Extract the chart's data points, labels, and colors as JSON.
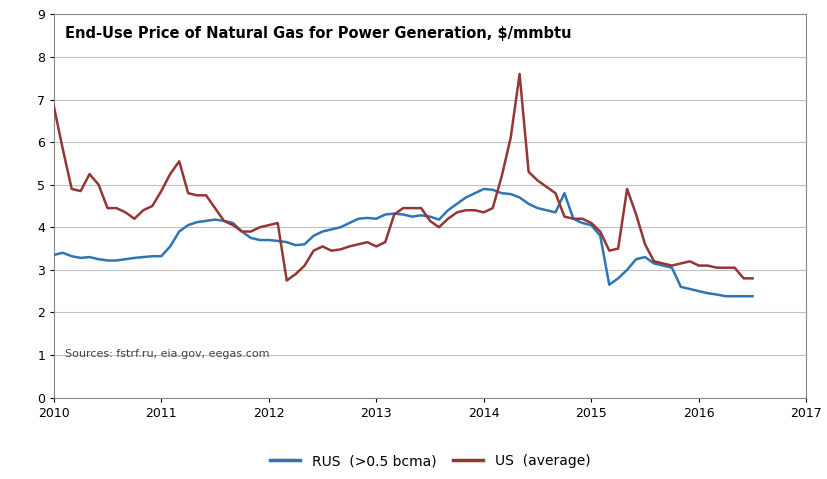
{
  "title": "End-Use Price of Natural Gas for Power Generation, $/mmbtu",
  "source_text": "Sources: fstrf.ru, eia.gov, eegas.com",
  "xlim": [
    2010,
    2017
  ],
  "ylim": [
    0,
    9
  ],
  "yticks": [
    0,
    1,
    2,
    3,
    4,
    5,
    6,
    7,
    8,
    9
  ],
  "xticks": [
    2010,
    2011,
    2012,
    2013,
    2014,
    2015,
    2016,
    2017
  ],
  "legend": [
    "RUS  (>0.5 bcma)",
    "US  (average)"
  ],
  "rus_color": "#2E75B6",
  "us_color": "#943634",
  "rus_x": [
    2010.0,
    2010.083,
    2010.167,
    2010.25,
    2010.333,
    2010.417,
    2010.5,
    2010.583,
    2010.667,
    2010.75,
    2010.833,
    2010.917,
    2011.0,
    2011.083,
    2011.167,
    2011.25,
    2011.333,
    2011.417,
    2011.5,
    2011.583,
    2011.667,
    2011.75,
    2011.833,
    2011.917,
    2012.0,
    2012.083,
    2012.167,
    2012.25,
    2012.333,
    2012.417,
    2012.5,
    2012.583,
    2012.667,
    2012.75,
    2012.833,
    2012.917,
    2013.0,
    2013.083,
    2013.167,
    2013.25,
    2013.333,
    2013.417,
    2013.5,
    2013.583,
    2013.667,
    2013.75,
    2013.833,
    2013.917,
    2014.0,
    2014.083,
    2014.167,
    2014.25,
    2014.333,
    2014.417,
    2014.5,
    2014.583,
    2014.667,
    2014.75,
    2014.833,
    2014.917,
    2015.0,
    2015.083,
    2015.167,
    2015.25,
    2015.333,
    2015.417,
    2015.5,
    2015.583,
    2015.667,
    2015.75,
    2015.833,
    2015.917,
    2016.0,
    2016.083,
    2016.167,
    2016.25,
    2016.333,
    2016.417,
    2016.5
  ],
  "rus_y": [
    3.35,
    3.4,
    3.32,
    3.28,
    3.3,
    3.25,
    3.22,
    3.22,
    3.25,
    3.28,
    3.3,
    3.32,
    3.32,
    3.55,
    3.9,
    4.05,
    4.12,
    4.15,
    4.18,
    4.15,
    4.1,
    3.9,
    3.75,
    3.7,
    3.7,
    3.68,
    3.65,
    3.58,
    3.6,
    3.8,
    3.9,
    3.95,
    4.0,
    4.1,
    4.2,
    4.22,
    4.2,
    4.3,
    4.32,
    4.3,
    4.25,
    4.28,
    4.25,
    4.18,
    4.4,
    4.55,
    4.7,
    4.8,
    4.9,
    4.88,
    4.8,
    4.78,
    4.7,
    4.55,
    4.45,
    4.4,
    4.35,
    4.8,
    4.2,
    4.1,
    4.05,
    3.8,
    2.65,
    2.8,
    3.0,
    3.25,
    3.3,
    3.15,
    3.1,
    3.05,
    2.6,
    2.55,
    2.5,
    2.45,
    2.42,
    2.38,
    2.38,
    2.38,
    2.38
  ],
  "us_x": [
    2010.0,
    2010.083,
    2010.167,
    2010.25,
    2010.333,
    2010.417,
    2010.5,
    2010.583,
    2010.667,
    2010.75,
    2010.833,
    2010.917,
    2011.0,
    2011.083,
    2011.167,
    2011.25,
    2011.333,
    2011.417,
    2011.5,
    2011.583,
    2011.667,
    2011.75,
    2011.833,
    2011.917,
    2012.0,
    2012.083,
    2012.167,
    2012.25,
    2012.333,
    2012.417,
    2012.5,
    2012.583,
    2012.667,
    2012.75,
    2012.833,
    2012.917,
    2013.0,
    2013.083,
    2013.167,
    2013.25,
    2013.333,
    2013.417,
    2013.5,
    2013.583,
    2013.667,
    2013.75,
    2013.833,
    2013.917,
    2014.0,
    2014.083,
    2014.167,
    2014.25,
    2014.333,
    2014.417,
    2014.5,
    2014.583,
    2014.667,
    2014.75,
    2014.833,
    2014.917,
    2015.0,
    2015.083,
    2015.167,
    2015.25,
    2015.333,
    2015.417,
    2015.5,
    2015.583,
    2015.667,
    2015.75,
    2015.833,
    2015.917,
    2016.0,
    2016.083,
    2016.167,
    2016.25,
    2016.333,
    2016.417,
    2016.5
  ],
  "us_y": [
    6.85,
    5.85,
    4.9,
    4.85,
    5.25,
    5.0,
    4.45,
    4.45,
    4.35,
    4.2,
    4.4,
    4.5,
    4.85,
    5.25,
    5.55,
    4.8,
    4.75,
    4.75,
    4.45,
    4.15,
    4.05,
    3.9,
    3.9,
    4.0,
    4.05,
    4.1,
    2.75,
    2.9,
    3.1,
    3.45,
    3.55,
    3.45,
    3.48,
    3.55,
    3.6,
    3.65,
    3.55,
    3.65,
    4.3,
    4.45,
    4.45,
    4.45,
    4.15,
    4.0,
    4.2,
    4.35,
    4.4,
    4.4,
    4.35,
    4.45,
    5.2,
    6.1,
    7.6,
    5.3,
    5.1,
    4.95,
    4.8,
    4.25,
    4.2,
    4.2,
    4.1,
    3.9,
    3.45,
    3.5,
    4.9,
    4.3,
    3.6,
    3.2,
    3.15,
    3.1,
    3.15,
    3.2,
    3.1,
    3.1,
    3.05,
    3.05,
    3.05,
    2.8,
    2.8
  ],
  "background_color": "#FFFFFF",
  "grid_color": "#C0C0C0",
  "line_width": 1.8,
  "title_fontsize": 10.5,
  "tick_fontsize": 9,
  "legend_fontsize": 10,
  "source_fontsize": 8
}
